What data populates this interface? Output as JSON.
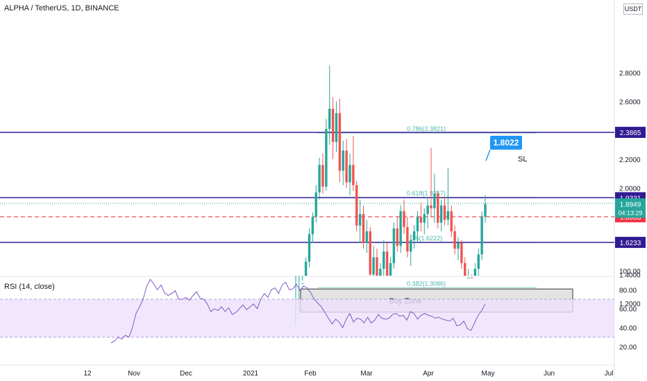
{
  "header": {
    "title": "ALPHA / TetherUS, 1D, BINANCE",
    "currency": "USDT"
  },
  "rsi": {
    "title": "RSI (14, close)"
  },
  "colors": {
    "up": "#26a69a",
    "down": "#ef5350",
    "level": "#311b92",
    "sl": "#f23645",
    "fib": "#80cbc4",
    "rsi_line": "#7e57c2",
    "rsi_band": "#ede1fb",
    "callout": "#2196f3"
  },
  "chart_data": {
    "type": "candlestick",
    "price_axis": {
      "ylim": [
        1.08,
        2.85
      ],
      "ticks": [
        "2.8000",
        "2.6000",
        "2.2000",
        "2.0000",
        "1.4000",
        "1.2000"
      ]
    },
    "x_axis": {
      "ticks": [
        "12",
        "Nov",
        "Dec",
        "2021",
        "Feb",
        "Mar",
        "Apr",
        "May",
        "Jun",
        "Jul"
      ]
    },
    "horizontal_levels": [
      {
        "value": 2.3865,
        "label": "2.3865"
      },
      {
        "value": 1.9331,
        "label": "1.9331"
      },
      {
        "value": 1.6233,
        "label": "1.6233"
      }
    ],
    "stop_loss": {
      "value": 1.8008,
      "label": "1.8008",
      "text": "SL"
    },
    "current_price": {
      "value": 1.8949,
      "label": "1.8949",
      "countdown": "04:13:29"
    },
    "callout": {
      "value": 1.8022,
      "label": "1.8022"
    },
    "fib_levels": [
      {
        "value": 2.3821,
        "label": "0.786(2.3821)"
      },
      {
        "value": 1.9357,
        "label": "0.618(1.9357)"
      },
      {
        "value": 1.6222,
        "label": "0.5(1.6222)"
      },
      {
        "value": 1.3086,
        "label": "0.382(1.3086)"
      }
    ],
    "buy_zone": {
      "label": "Buy Zone",
      "top": 1.3,
      "bottom": 1.14
    },
    "candles": [
      [
        1.0,
        1.05,
        0.98,
        1.03
      ],
      [
        1.03,
        1.14,
        1.02,
        1.13
      ],
      [
        1.13,
        1.36,
        1.12,
        1.34
      ],
      [
        1.34,
        1.52,
        1.3,
        1.49
      ],
      [
        1.49,
        1.72,
        1.45,
        1.68
      ],
      [
        1.68,
        1.83,
        1.62,
        1.8
      ],
      [
        1.8,
        2.02,
        1.76,
        1.97
      ],
      [
        1.97,
        2.21,
        1.92,
        2.16
      ],
      [
        2.16,
        2.24,
        1.96,
        2.01
      ],
      [
        2.01,
        2.48,
        1.98,
        2.41
      ],
      [
        2.41,
        2.85,
        2.3,
        2.55
      ],
      [
        2.55,
        2.63,
        2.2,
        2.32
      ],
      [
        2.32,
        2.6,
        2.25,
        2.52
      ],
      [
        2.52,
        2.62,
        2.04,
        2.12
      ],
      [
        2.12,
        2.33,
        2.02,
        2.26
      ],
      [
        2.26,
        2.34,
        2.0,
        2.04
      ],
      [
        2.04,
        2.24,
        1.95,
        2.16
      ],
      [
        2.16,
        2.36,
        1.98,
        2.02
      ],
      [
        2.02,
        2.05,
        1.7,
        1.74
      ],
      [
        1.74,
        1.92,
        1.62,
        1.82
      ],
      [
        1.82,
        1.88,
        1.58,
        1.62
      ],
      [
        1.62,
        1.78,
        1.55,
        1.7
      ],
      [
        1.7,
        1.73,
        1.34,
        1.4
      ],
      [
        1.4,
        1.6,
        1.3,
        1.52
      ],
      [
        1.52,
        1.58,
        1.17,
        1.22
      ],
      [
        1.22,
        1.48,
        1.1,
        1.44
      ],
      [
        1.44,
        1.64,
        1.36,
        1.56
      ],
      [
        1.56,
        1.62,
        1.2,
        1.26
      ],
      [
        1.26,
        1.52,
        1.12,
        1.48
      ],
      [
        1.48,
        1.76,
        1.44,
        1.72
      ],
      [
        1.72,
        1.8,
        1.56,
        1.6
      ],
      [
        1.6,
        1.88,
        1.55,
        1.84
      ],
      [
        1.84,
        1.92,
        1.68,
        1.73
      ],
      [
        1.73,
        1.8,
        1.52,
        1.56
      ],
      [
        1.56,
        1.68,
        1.46,
        1.64
      ],
      [
        1.64,
        1.74,
        1.58,
        1.7
      ],
      [
        1.7,
        1.84,
        1.62,
        1.8
      ],
      [
        1.8,
        1.9,
        1.7,
        1.76
      ],
      [
        1.76,
        1.86,
        1.68,
        1.82
      ],
      [
        1.82,
        1.94,
        1.72,
        1.88
      ],
      [
        1.88,
        2.28,
        1.8,
        1.86
      ],
      [
        1.86,
        2.1,
        1.76,
        1.96
      ],
      [
        1.96,
        1.98,
        1.72,
        1.76
      ],
      [
        1.76,
        1.92,
        1.7,
        1.88
      ],
      [
        1.88,
        1.94,
        1.74,
        1.78
      ],
      [
        1.78,
        2.14,
        1.74,
        1.84
      ],
      [
        1.84,
        1.88,
        1.66,
        1.7
      ],
      [
        1.7,
        1.74,
        1.54,
        1.58
      ],
      [
        1.58,
        1.66,
        1.5,
        1.62
      ],
      [
        1.62,
        1.64,
        1.44,
        1.48
      ],
      [
        1.48,
        1.52,
        1.14,
        1.2
      ],
      [
        1.2,
        1.44,
        1.1,
        1.38
      ],
      [
        1.38,
        1.4,
        1.18,
        1.22
      ],
      [
        1.22,
        1.48,
        1.18,
        1.44
      ],
      [
        1.44,
        1.58,
        1.36,
        1.54
      ],
      [
        1.54,
        1.84,
        1.5,
        1.8
      ],
      [
        1.8,
        1.95,
        1.76,
        1.89
      ]
    ],
    "rsi_data": {
      "ylim": [
        15,
        100
      ],
      "ticks": [
        "100.00",
        "80.00",
        "60.00",
        "40.00",
        "20.00"
      ],
      "bands": [
        70,
        30
      ],
      "values": [
        24,
        26,
        30,
        28,
        32,
        30,
        40,
        55,
        62,
        70,
        84,
        91,
        86,
        80,
        85,
        77,
        74,
        76,
        79,
        70,
        70,
        72,
        69,
        74,
        78,
        71,
        70,
        65,
        57,
        60,
        58,
        62,
        57,
        61,
        54,
        56,
        60,
        64,
        59,
        62,
        65,
        60,
        70,
        76,
        72,
        80,
        82,
        76,
        85,
        88,
        80,
        81,
        86,
        79,
        84,
        82,
        77,
        70,
        66,
        62,
        56,
        50,
        44,
        49,
        46,
        40,
        49,
        55,
        46,
        50,
        49,
        45,
        51,
        45,
        48,
        54,
        50,
        49,
        50,
        54,
        55,
        52,
        53,
        48,
        57,
        55,
        49,
        53,
        55,
        53,
        52,
        50,
        51,
        49,
        48,
        47,
        50,
        42,
        43,
        47,
        39,
        37,
        45,
        53,
        58,
        65
      ]
    }
  }
}
